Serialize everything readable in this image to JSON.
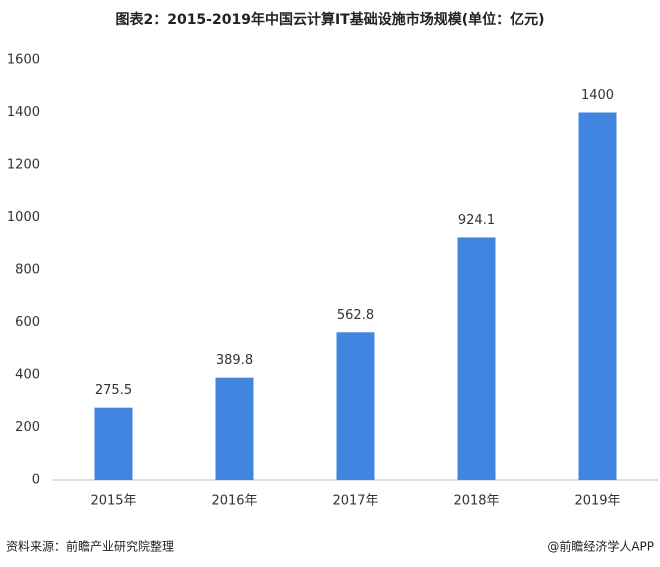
{
  "chart_data": {
    "type": "bar",
    "title": "图表2：2015-2019年中国云计算IT基础设施市场规模(单位：亿元)",
    "categories": [
      "2015年",
      "2016年",
      "2017年",
      "2018年",
      "2019年"
    ],
    "values": [
      275.5,
      389.8,
      562.8,
      924.1,
      1400
    ],
    "color": "#4285e0",
    "ylim": [
      0,
      1600
    ],
    "yticks": [
      0,
      200,
      400,
      600,
      800,
      1000,
      1200,
      1400,
      1600
    ],
    "grid": false
  },
  "footer": {
    "source": "资料来源：前瞻产业研究院整理",
    "credit": "@前瞻经济学人APP"
  }
}
